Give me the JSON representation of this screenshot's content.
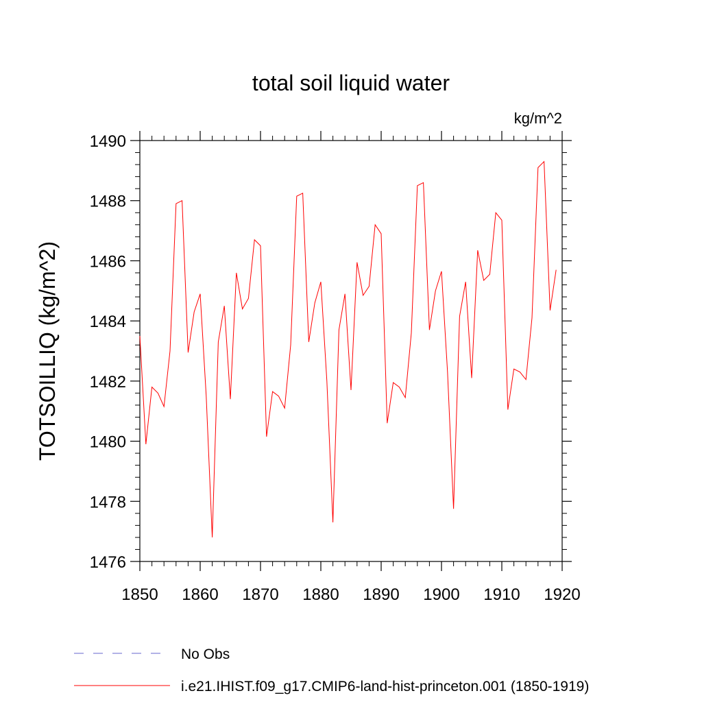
{
  "chart_data": {
    "type": "line",
    "title": "total soil liquid water",
    "units_label": "kg/m^2",
    "ylabel": "TOTSOILLIQ  (kg/m^2)",
    "xlabel": "",
    "xlim": [
      1850,
      1920
    ],
    "ylim": [
      1476,
      1490
    ],
    "x_ticks": [
      1850,
      1860,
      1870,
      1880,
      1890,
      1900,
      1910,
      1920
    ],
    "y_ticks": [
      1476,
      1478,
      1480,
      1482,
      1484,
      1486,
      1488,
      1490
    ],
    "series": [
      {
        "name": "i.e21.IHIST.f09_g17.CMIP6-land-hist-princeton.001 (1850-1919)",
        "color": "#ff0000",
        "style": "solid",
        "x": [
          1850,
          1851,
          1852,
          1853,
          1854,
          1855,
          1856,
          1857,
          1858,
          1859,
          1860,
          1861,
          1862,
          1863,
          1864,
          1865,
          1866,
          1867,
          1868,
          1869,
          1870,
          1871,
          1872,
          1873,
          1874,
          1875,
          1876,
          1877,
          1878,
          1879,
          1880,
          1881,
          1882,
          1883,
          1884,
          1885,
          1886,
          1887,
          1888,
          1889,
          1890,
          1891,
          1892,
          1893,
          1894,
          1895,
          1896,
          1897,
          1898,
          1899,
          1900,
          1901,
          1902,
          1903,
          1904,
          1905,
          1906,
          1907,
          1908,
          1909,
          1910,
          1911,
          1912,
          1913,
          1914,
          1915,
          1916,
          1917,
          1918,
          1919
        ],
        "values": [
          1483.5,
          1479.9,
          1481.8,
          1481.6,
          1481.15,
          1483.0,
          1487.9,
          1488.0,
          1482.95,
          1484.3,
          1484.9,
          1481.5,
          1476.8,
          1483.3,
          1484.5,
          1481.4,
          1485.6,
          1484.4,
          1484.75,
          1486.7,
          1486.5,
          1480.15,
          1481.65,
          1481.5,
          1481.1,
          1483.2,
          1488.15,
          1488.25,
          1483.3,
          1484.6,
          1485.3,
          1482.0,
          1477.3,
          1483.7,
          1484.9,
          1481.7,
          1485.95,
          1484.85,
          1485.15,
          1487.2,
          1486.9,
          1480.6,
          1481.95,
          1481.8,
          1481.45,
          1483.6,
          1488.5,
          1488.6,
          1483.7,
          1485.0,
          1485.65,
          1482.3,
          1477.75,
          1484.15,
          1485.3,
          1482.1,
          1486.35,
          1485.35,
          1485.55,
          1487.6,
          1487.35,
          1481.05,
          1482.4,
          1482.3,
          1482.05,
          1484.1,
          1489.1,
          1489.3,
          1484.35,
          1485.7
        ]
      }
    ],
    "legend": [
      {
        "label": "No Obs",
        "color": "#6666cc",
        "style": "dashed"
      },
      {
        "label": "i.e21.IHIST.f09_g17.CMIP6-land-hist-princeton.001 (1850-1919)",
        "color": "#ff0000",
        "style": "solid"
      }
    ],
    "legend_placement": "bottom-left",
    "grid": false
  }
}
